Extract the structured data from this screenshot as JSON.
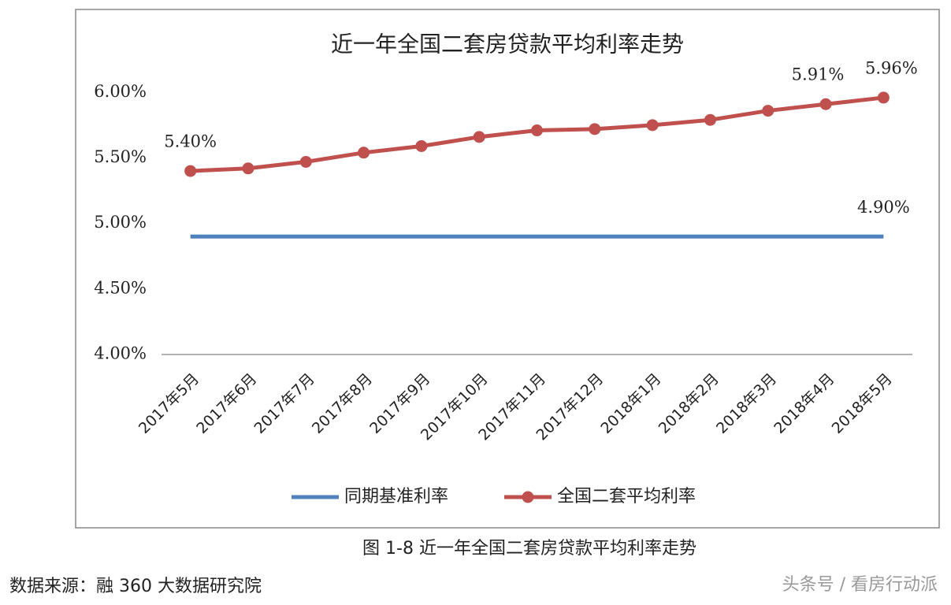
{
  "chart_data": {
    "type": "line",
    "title": "近一年全国二套房贷款平均利率走势",
    "categories": [
      "2017年5月",
      "2017年6月",
      "2017年7月",
      "2017年8月",
      "2017年9月",
      "2017年10月",
      "2017年11月",
      "2017年12月",
      "2018年1月",
      "2018年2月",
      "2018年3月",
      "2018年4月",
      "2018年5月"
    ],
    "series": [
      {
        "name": "同期基准利率",
        "color": "#4f81bd",
        "marker": false,
        "values": [
          4.9,
          4.9,
          4.9,
          4.9,
          4.9,
          4.9,
          4.9,
          4.9,
          4.9,
          4.9,
          4.9,
          4.9,
          4.9
        ],
        "value_labels": [
          null,
          null,
          null,
          null,
          null,
          null,
          null,
          null,
          null,
          null,
          null,
          null,
          "4.90%"
        ]
      },
      {
        "name": "全国二套平均利率",
        "color": "#c0504d",
        "marker": true,
        "values": [
          5.4,
          5.42,
          5.47,
          5.54,
          5.59,
          5.66,
          5.71,
          5.72,
          5.75,
          5.79,
          5.86,
          5.91,
          5.96
        ],
        "value_labels": [
          "5.40%",
          null,
          null,
          null,
          null,
          null,
          null,
          null,
          null,
          null,
          null,
          "5.91%",
          "5.96%"
        ]
      }
    ],
    "ylim": [
      4,
      6.2
    ],
    "yticks": [
      {
        "value": 4,
        "label": "4.00%"
      },
      {
        "value": 4.5,
        "label": "4.50%"
      },
      {
        "value": 5,
        "label": "5.00%"
      },
      {
        "value": 5.5,
        "label": "5.50%"
      },
      {
        "value": 6,
        "label": "6.00%"
      }
    ],
    "grid": false,
    "legend": "bottom",
    "caption": "图 1-8 近一年全国二套房贷款平均利率走势",
    "source": "数据来源：融 360 大数据研究院",
    "watermark": "头条号 / 看房行动派"
  }
}
